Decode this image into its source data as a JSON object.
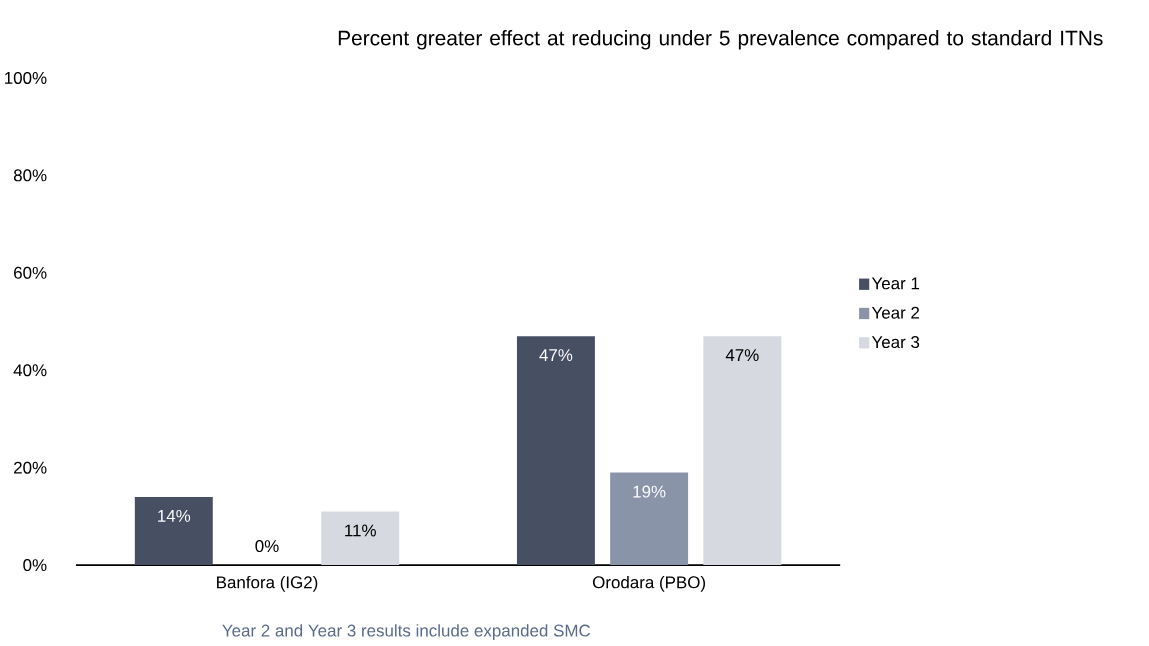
{
  "chart_data": {
    "type": "bar",
    "title": "Percent greater effect at reducing under 5 prevalence compared to standard ITNs",
    "categories": [
      "Banfora (IG2)",
      "Orodara (PBO)"
    ],
    "series": [
      {
        "name": "Year 1",
        "color": "#474f63",
        "values": [
          14,
          47
        ],
        "value_labels": [
          "14%",
          "47%"
        ]
      },
      {
        "name": "Year 2",
        "color": "#8a94a8",
        "values": [
          0,
          19
        ],
        "value_labels": [
          "0%",
          "19%"
        ]
      },
      {
        "name": "Year 3",
        "color": "#d6d9e0",
        "values": [
          11,
          47
        ],
        "value_labels": [
          "11%",
          "47%"
        ]
      }
    ],
    "ylim": [
      0,
      100
    ],
    "yticks": [
      {
        "value": 0,
        "label": "0%"
      },
      {
        "value": 20,
        "label": "20%"
      },
      {
        "value": 40,
        "label": "40%"
      },
      {
        "value": 60,
        "label": "60%"
      },
      {
        "value": 80,
        "label": "80%"
      },
      {
        "value": 100,
        "label": "100%"
      }
    ],
    "legend": "right",
    "annotations": [
      "Year 2 and Year 3 results include expanded SMC"
    ]
  }
}
